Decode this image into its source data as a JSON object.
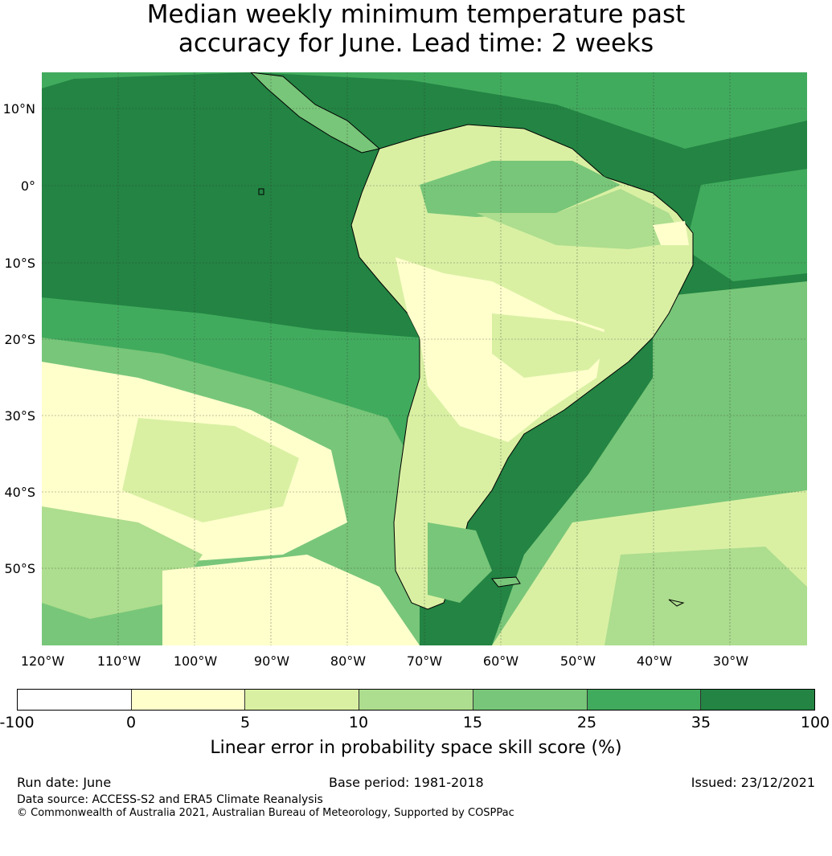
{
  "title": {
    "line1": "Median weekly minimum temperature past",
    "line2": "accuracy for June. Lead time: 2 weeks"
  },
  "map": {
    "lat_labels": [
      "10°N",
      "0°",
      "10°S",
      "20°S",
      "30°S",
      "40°S",
      "50°S"
    ],
    "lon_labels": [
      "120°W",
      "110°W",
      "100°W",
      "90°W",
      "80°W",
      "70°W",
      "60°W",
      "50°W",
      "40°W",
      "30°W"
    ]
  },
  "colorbar": {
    "ticks": [
      "-100",
      "0",
      "5",
      "10",
      "15",
      "25",
      "35",
      "100"
    ],
    "colors": [
      "#ffffff",
      "#ffffcc",
      "#d9f0a3",
      "#addd8e",
      "#78c679",
      "#41ab5d",
      "#238443"
    ],
    "label": "Linear error in probability space skill score (%)"
  },
  "footer": {
    "run_date": "Run date: June",
    "base_period": "Base period: 1981-2018",
    "issued": "Issued: 23/12/2021",
    "data_source": "Data source: ACCESS-S2 and ERA5 Climate Reanalysis",
    "copyright": "© Commonwealth of Australia 2021, Australian Bureau of Meteorology, Supported by COSPPac"
  }
}
